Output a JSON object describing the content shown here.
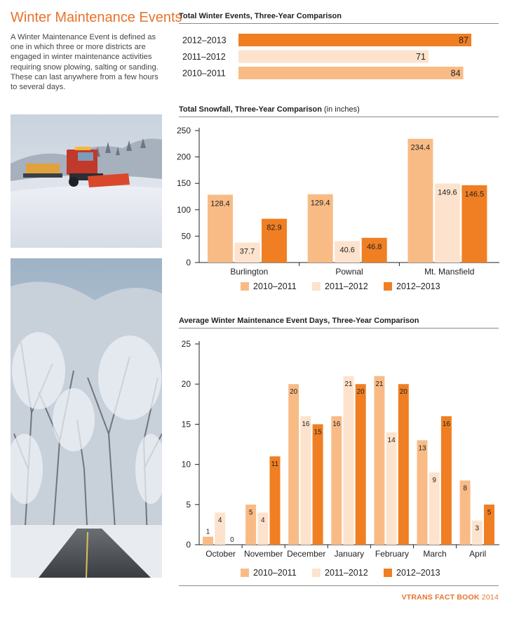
{
  "page": {
    "title": "Winter Maintenance Events",
    "intro": "A Winter Maintenance Event is defined as one in which three or more districts are engaged in winter maintenance activities requiring snow plowing, salting or sanding. These can last anywhere from a few hours to several days.",
    "footer_brand": "VTRANS FACT BOOK",
    "footer_year": "2014"
  },
  "colors": {
    "orange": "#f07f23",
    "light_orange": "#f9bb86",
    "pale": "#fde3cd",
    "heading": "#e8732a"
  },
  "images": [
    {
      "name": "snowplow-photo",
      "subject": "snowplow truck clearing a snowy road"
    },
    {
      "name": "icy-trees-photo",
      "subject": "ice-covered trees over a winding road"
    }
  ],
  "chart_data": [
    {
      "type": "bar",
      "orientation": "horizontal",
      "title": "Total Winter Events, Three-Year Comparison",
      "categories": [
        "2012–2013",
        "2011–2012",
        "2010–2011"
      ],
      "values": [
        87,
        71,
        84
      ],
      "bar_colors": [
        "#f07f23",
        "#fde3cd",
        "#f9bb86"
      ],
      "xlim": [
        0,
        87
      ],
      "grid": false
    },
    {
      "type": "bar",
      "title": "Total Snowfall, Three-Year Comparison",
      "title_unit": "(in inches)",
      "categories": [
        "Burlington",
        "Pownal",
        "Mt. Mansfield"
      ],
      "series": [
        {
          "name": "2010–2011",
          "values": [
            128.4,
            129.4,
            234.4
          ],
          "color": "#f9bb86"
        },
        {
          "name": "2011–2012",
          "values": [
            37.7,
            40.6,
            149.6
          ],
          "color": "#fde3cd"
        },
        {
          "name": "2012–2013",
          "values": [
            82.9,
            46.8,
            146.5
          ],
          "color": "#f07f23"
        }
      ],
      "yticks": [
        "0",
        "50",
        "100",
        "150",
        "200",
        "250"
      ],
      "ylim": [
        0,
        250
      ],
      "legend": "bottom",
      "grid": false
    },
    {
      "type": "bar",
      "title": "Average Winter Maintenance Event Days, Three-Year Comparison",
      "categories": [
        "October",
        "November",
        "December",
        "January",
        "February",
        "March",
        "April"
      ],
      "series": [
        {
          "name": "2010–2011",
          "values": [
            1,
            5,
            20,
            16,
            21,
            13,
            8
          ],
          "color": "#f9bb86"
        },
        {
          "name": "2011–2012",
          "values": [
            4,
            4,
            16,
            21,
            14,
            9,
            3
          ],
          "color": "#fde3cd"
        },
        {
          "name": "2012–2013",
          "values": [
            0,
            11,
            15,
            20,
            20,
            16,
            5
          ],
          "color": "#f07f23"
        }
      ],
      "yticks": [
        "0",
        "5",
        "10",
        "15",
        "20",
        "25"
      ],
      "ylim": [
        0,
        25
      ],
      "legend": "bottom",
      "grid": false
    }
  ]
}
